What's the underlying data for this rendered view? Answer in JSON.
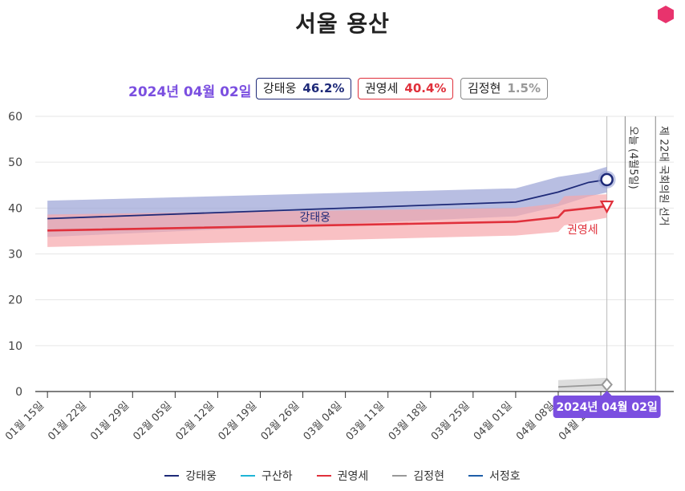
{
  "title": "서울 용산",
  "current_date_label": "2024년 04월 02일",
  "badges": [
    {
      "name": "강태웅",
      "pct": "46.2%"
    },
    {
      "name": "권영세",
      "pct": "40.4%"
    },
    {
      "name": "김정현",
      "pct": "1.5%"
    }
  ],
  "colors": {
    "kang": "#1e2a78",
    "kang_band": "#9aa3d6",
    "kwon": "#e0303b",
    "kwon_band": "#f7a6ab",
    "kim": "#999999",
    "gu": "#1fb5d6",
    "seo": "#1f5fa8",
    "accent": "#7b4fe0",
    "hex": "#e8336d"
  },
  "chart_data": {
    "type": "line",
    "title": "서울 용산",
    "y_ticks": [
      "0",
      "10",
      "20",
      "30",
      "40",
      "50",
      "60"
    ],
    "ylim": [
      0,
      60
    ],
    "x_ticks": [
      "01월 15일",
      "01월 22일",
      "01월 29일",
      "02월 05일",
      "02월 12일",
      "02월 19일",
      "02월 26일",
      "03월 04일",
      "03월 11일",
      "03월 18일",
      "03월 25일",
      "04월 01일",
      "04월 08일",
      "04월 15일"
    ],
    "x_days_range": [
      -2,
      103
    ],
    "series": [
      {
        "name": "강태웅",
        "x_days": [
          0,
          77,
          84,
          89,
          92
        ],
        "values": [
          37.7,
          41.3,
          43.5,
          45.6,
          46.2
        ],
        "band_upper": [
          41.6,
          44.3,
          46.8,
          47.8,
          49.0
        ],
        "band_lower": [
          33.7,
          38.2,
          40.4,
          42.5,
          43.4
        ],
        "label": "강태웅"
      },
      {
        "name": "권영세",
        "x_days": [
          0,
          77,
          84,
          85,
          92
        ],
        "values": [
          35.1,
          37.0,
          38.0,
          39.4,
          40.4
        ],
        "band_upper": [
          38.6,
          40.0,
          41.0,
          42.6,
          43.0
        ],
        "band_lower": [
          31.5,
          34.0,
          34.8,
          36.2,
          37.9
        ],
        "label": "권영세"
      },
      {
        "name": "김정현",
        "x_days": [
          84,
          92
        ],
        "values": [
          1.0,
          1.5
        ],
        "band_upper": [
          2.5,
          3.0
        ],
        "band_lower": [
          0.2,
          0.3
        ],
        "label": ""
      }
    ],
    "events": [
      {
        "label": "오늘 (4월5일)",
        "x_day": 95
      },
      {
        "label": "제 22대 국회의원 선거",
        "x_day": 100
      }
    ],
    "cursor": {
      "x_day": 92,
      "label": "2024년 04월 02일"
    },
    "legend": [
      "강태웅",
      "구산하",
      "권영세",
      "김정현",
      "서정호"
    ]
  }
}
